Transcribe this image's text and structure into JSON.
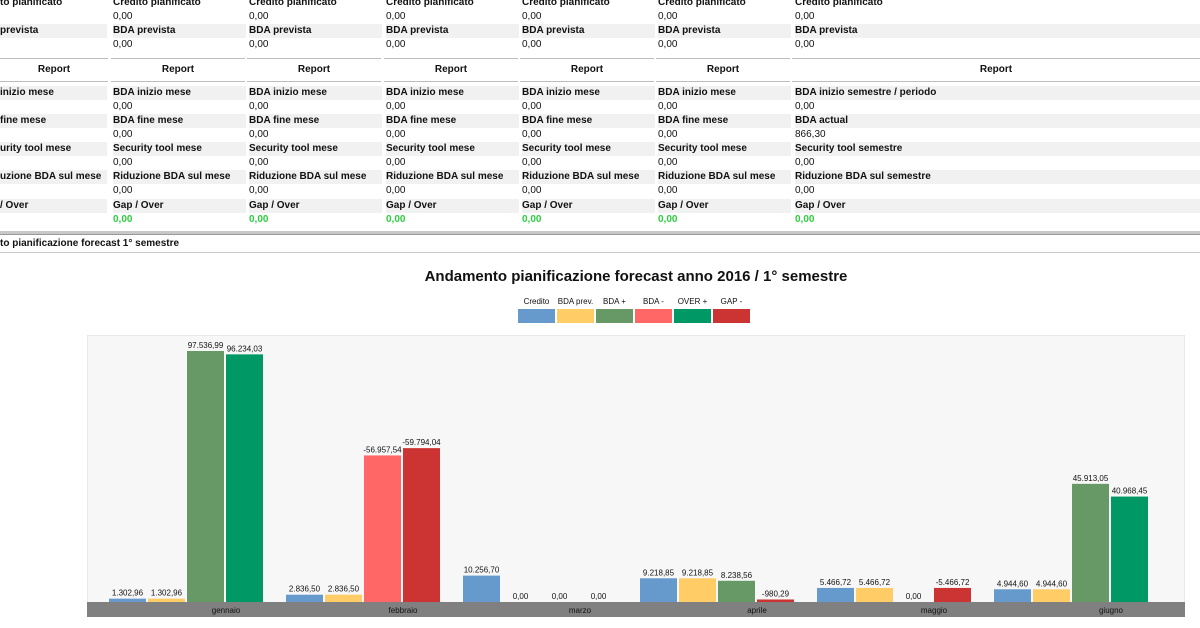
{
  "table": {
    "columns": [
      {
        "credito_label": "to pianificato",
        "credito_value": "",
        "bda_prev_label": "prevista",
        "bda_prev_value": "",
        "report": "Report",
        "bda_inizio_label": "inizio mese",
        "bda_inizio_value": "",
        "bda_fine_label": "fine mese",
        "bda_fine_value": "",
        "security_label": "urity tool mese",
        "security_value": "",
        "riduzione_label": "uzione BDA sul mese",
        "riduzione_value": "",
        "gap_label": "/ Over",
        "gap_value": ""
      },
      {
        "credito_label": "Credito pianificato",
        "credito_value": "0,00",
        "bda_prev_label": "BDA prevista",
        "bda_prev_value": "0,00",
        "report": "Report",
        "bda_inizio_label": "BDA inizio mese",
        "bda_inizio_value": "0,00",
        "bda_fine_label": "BDA fine mese",
        "bda_fine_value": "0,00",
        "security_label": "Security tool mese",
        "security_value": "0,00",
        "riduzione_label": "Riduzione BDA sul mese",
        "riduzione_value": "0,00",
        "gap_label": "Gap / Over",
        "gap_value": "0,00"
      },
      {
        "credito_label": "Credito pianificato",
        "credito_value": "0,00",
        "bda_prev_label": "BDA prevista",
        "bda_prev_value": "0,00",
        "report": "Report",
        "bda_inizio_label": "BDA inizio mese",
        "bda_inizio_value": "0,00",
        "bda_fine_label": "BDA fine mese",
        "bda_fine_value": "0,00",
        "security_label": "Security tool mese",
        "security_value": "0,00",
        "riduzione_label": "Riduzione BDA sul mese",
        "riduzione_value": "0,00",
        "gap_label": "Gap / Over",
        "gap_value": "0,00"
      },
      {
        "credito_label": "Credito pianificato",
        "credito_value": "0,00",
        "bda_prev_label": "BDA prevista",
        "bda_prev_value": "0,00",
        "report": "Report",
        "bda_inizio_label": "BDA inizio mese",
        "bda_inizio_value": "0,00",
        "bda_fine_label": "BDA fine mese",
        "bda_fine_value": "0,00",
        "security_label": "Security tool mese",
        "security_value": "0,00",
        "riduzione_label": "Riduzione BDA sul mese",
        "riduzione_value": "0,00",
        "gap_label": "Gap / Over",
        "gap_value": "0,00"
      },
      {
        "credito_label": "Credito pianificato",
        "credito_value": "0,00",
        "bda_prev_label": "BDA prevista",
        "bda_prev_value": "0,00",
        "report": "Report",
        "bda_inizio_label": "BDA inizio mese",
        "bda_inizio_value": "0,00",
        "bda_fine_label": "BDA fine mese",
        "bda_fine_value": "0,00",
        "security_label": "Security tool mese",
        "security_value": "0,00",
        "riduzione_label": "Riduzione BDA sul mese",
        "riduzione_value": "0,00",
        "gap_label": "Gap / Over",
        "gap_value": "0,00"
      },
      {
        "credito_label": "Credito pianificato",
        "credito_value": "0,00",
        "bda_prev_label": "BDA prevista",
        "bda_prev_value": "0,00",
        "report": "Report",
        "bda_inizio_label": "BDA inizio mese",
        "bda_inizio_value": "0,00",
        "bda_fine_label": "BDA fine mese",
        "bda_fine_value": "0,00",
        "security_label": "Security tool mese",
        "security_value": "0,00",
        "riduzione_label": "Riduzione BDA sul mese",
        "riduzione_value": "0,00",
        "gap_label": "Gap / Over",
        "gap_value": "0,00"
      },
      {
        "credito_label": "Credito pianificato",
        "credito_value": "0,00",
        "bda_prev_label": "BDA prevista",
        "bda_prev_value": "0,00",
        "report": "Report",
        "bda_inizio_label": "BDA inizio semestre / periodo",
        "bda_inizio_value": "0,00",
        "bda_fine_label": "BDA actual",
        "bda_fine_value": "866,30",
        "security_label": "Security tool semestre",
        "security_value": "0,00",
        "riduzione_label": "Riduzione BDA sul semestre",
        "riduzione_value": "0,00",
        "gap_label": "Gap / Over",
        "gap_value": "0,00"
      }
    ]
  },
  "section": {
    "title": "to pianificazione forecast 1° semestre"
  },
  "chart_data": {
    "type": "bar",
    "title": "Andamento pianificazione forecast anno 2016 / 1° semestre",
    "legend_position": "top",
    "categories": [
      "gennaio",
      "febbraio",
      "marzo",
      "aprile",
      "maggio",
      "giugno"
    ],
    "series": [
      {
        "name": "Credito",
        "color": "#6699cc",
        "values": [
          1302.96,
          2836.5,
          10256.7,
          9218.85,
          5466.72,
          4944.6
        ],
        "labels": [
          "1.302,96",
          "2.836,50",
          "10.256,70",
          "9.218,85",
          "5.466,72",
          "4.944,60"
        ]
      },
      {
        "name": "BDA prev.",
        "color": "#ffcc66",
        "values": [
          1302.96,
          2836.5,
          0,
          9218.85,
          5466.72,
          4944.6
        ],
        "labels": [
          "1.302,96",
          "2.836,50",
          "0,00",
          "9.218,85",
          "5.466,72",
          "4.944,60"
        ]
      },
      {
        "name": "BDA +",
        "color": "#669966",
        "values": [
          97536.99,
          null,
          null,
          8238.56,
          null,
          45913.05
        ],
        "labels": [
          "97.536,99",
          "",
          "",
          "8.238,56",
          "",
          "45.913,05"
        ]
      },
      {
        "name": "BDA -",
        "color": "#ff6666",
        "values": [
          null,
          -56957.54,
          null,
          null,
          null,
          null
        ],
        "labels": [
          "",
          "-56.957,54",
          "",
          "",
          "",
          ""
        ]
      },
      {
        "name": "OVER +",
        "color": "#009966",
        "values": [
          96234.03,
          null,
          0,
          null,
          0,
          40968.45
        ],
        "labels": [
          "96.234,03",
          "",
          "0,00",
          "",
          "0,00",
          "40.968,45"
        ]
      },
      {
        "name": "GAP -",
        "color": "#cc3333",
        "values": [
          null,
          -59794.04,
          0,
          -980.29,
          -5466.72,
          null
        ],
        "labels": [
          "",
          "-59.794,04",
          "0,00",
          "-980,29",
          "-5.466,72",
          ""
        ]
      }
    ],
    "plot_background": "#f7f7f7",
    "axis_bar_color": "#808080"
  }
}
